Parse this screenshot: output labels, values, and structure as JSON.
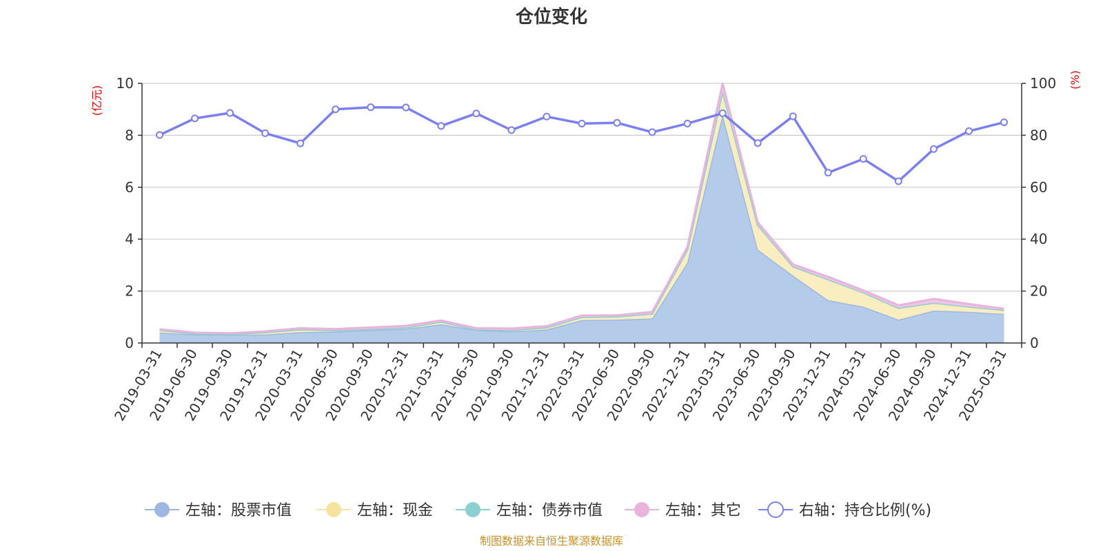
{
  "chart_data": {
    "type": "area",
    "title": "仓位变化",
    "left_unit": "(亿元)",
    "right_unit": "(%)",
    "source": "制图数据来自恒生聚源数据库",
    "categories": [
      "2019-03-31",
      "2019-06-30",
      "2019-09-30",
      "2019-12-31",
      "2020-03-31",
      "2020-06-30",
      "2020-09-30",
      "2020-12-31",
      "2021-03-31",
      "2021-06-30",
      "2021-09-30",
      "2021-12-31",
      "2022-03-31",
      "2022-06-30",
      "2022-09-30",
      "2022-12-31",
      "2023-03-31",
      "2023-06-30",
      "2023-09-30",
      "2023-12-31",
      "2024-03-31",
      "2024-06-30",
      "2024-09-30",
      "2024-12-31",
      "2025-03-31"
    ],
    "left_axis": {
      "min": 0,
      "max": 10,
      "ticks": [
        "0",
        "2",
        "4",
        "6",
        "8",
        "10"
      ]
    },
    "right_axis": {
      "min": 0,
      "max": 100,
      "ticks": [
        "0",
        "20",
        "40",
        "60",
        "80",
        "100"
      ]
    },
    "grid": true,
    "legend_position": "bottom",
    "series": [
      {
        "name": "左轴：股票市值",
        "axis": "left",
        "stack": "area",
        "color": "#9db8e0",
        "fill": "#b5cbea",
        "values": [
          0.4,
          0.33,
          0.32,
          0.33,
          0.42,
          0.44,
          0.5,
          0.55,
          0.72,
          0.5,
          0.45,
          0.52,
          0.88,
          0.9,
          0.95,
          3.1,
          8.8,
          3.6,
          2.6,
          1.65,
          1.4,
          0.9,
          1.25,
          1.2,
          1.12
        ]
      },
      {
        "name": "左轴：现金",
        "axis": "left",
        "stack": "area",
        "color": "#f7e3a0",
        "fill": "#faedbf",
        "values": [
          0.1,
          0.03,
          0.03,
          0.08,
          0.1,
          0.05,
          0.04,
          0.05,
          0.1,
          0.02,
          0.05,
          0.08,
          0.12,
          0.12,
          0.18,
          0.5,
          0.9,
          0.95,
          0.35,
          0.8,
          0.55,
          0.45,
          0.3,
          0.2,
          0.15
        ]
      },
      {
        "name": "左轴：债券市值",
        "axis": "left",
        "stack": "area",
        "color": "#8ccfd0",
        "fill": "#a6dad9",
        "values": [
          0,
          0,
          0,
          0,
          0,
          0,
          0,
          0,
          0,
          0,
          0,
          0,
          0,
          0,
          0,
          0,
          0,
          0,
          0,
          0,
          0,
          0,
          0,
          0,
          0
        ]
      },
      {
        "name": "左轴：其它",
        "axis": "left",
        "stack": "area",
        "color": "#e8b4dc",
        "fill": "#efc6e5",
        "values": [
          0.03,
          0.04,
          0.03,
          0.04,
          0.05,
          0.05,
          0.06,
          0.06,
          0.05,
          0.05,
          0.06,
          0.05,
          0.06,
          0.05,
          0.07,
          0.1,
          0.3,
          0.1,
          0.08,
          0.1,
          0.08,
          0.1,
          0.15,
          0.1,
          0.05
        ]
      },
      {
        "name": "右轴：持仓比例(%)",
        "axis": "right",
        "stack": null,
        "color": "#7b7ff0",
        "fill": "none",
        "values": [
          80.1,
          86.5,
          88.6,
          80.8,
          76.9,
          90.0,
          90.8,
          90.7,
          83.6,
          88.4,
          82.0,
          87.2,
          84.5,
          84.8,
          81.2,
          84.5,
          88.5,
          77.0,
          87.3,
          65.6,
          70.9,
          62.3,
          74.7,
          81.6,
          85.0
        ]
      }
    ]
  }
}
